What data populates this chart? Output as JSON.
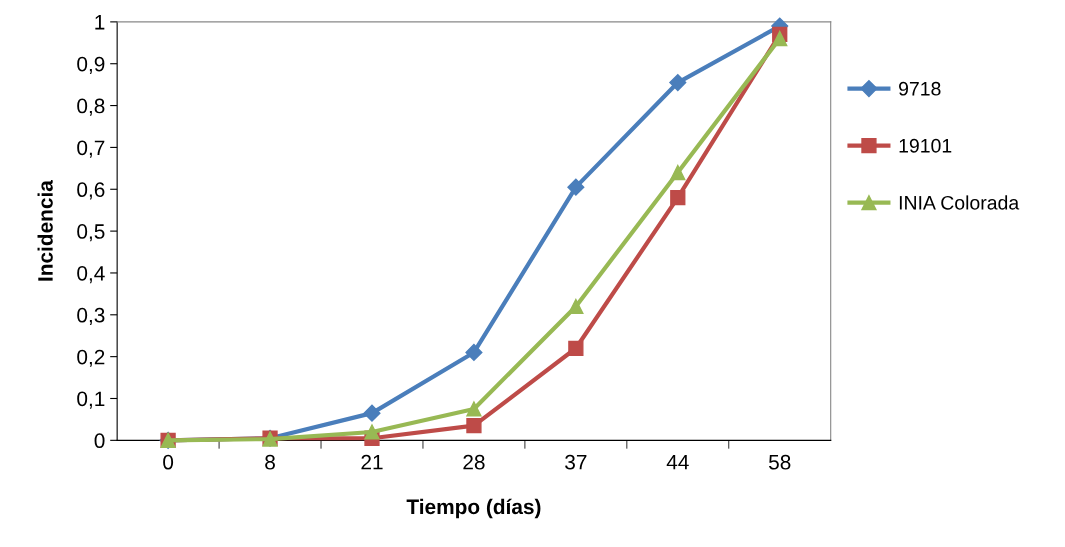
{
  "chart_data": {
    "type": "line",
    "xlabel": "Tiempo (días)",
    "ylabel": "Incidencia",
    "categories": [
      "0",
      "8",
      "21",
      "28",
      "37",
      "44",
      "58"
    ],
    "series": [
      {
        "name": "9718",
        "color": "#4a7ebb",
        "marker": "diamond",
        "values": [
          0,
          0.005,
          0.065,
          0.21,
          0.605,
          0.855,
          0.99
        ]
      },
      {
        "name": "19101",
        "color": "#be4b48",
        "marker": "square",
        "values": [
          0,
          0.005,
          0.005,
          0.035,
          0.22,
          0.58,
          0.97
        ]
      },
      {
        "name": "INIA Colorada",
        "color": "#98b954",
        "marker": "triangle",
        "values": [
          0,
          0.003,
          0.02,
          0.075,
          0.32,
          0.64,
          0.96
        ]
      }
    ],
    "ylim": [
      0,
      1
    ],
    "yticks": [
      0,
      {
        "value": 0.1,
        "label": "0,1"
      },
      {
        "value": 0.2,
        "label": "0,2"
      },
      {
        "value": 0.3,
        "label": "0,3"
      },
      {
        "value": 0.4,
        "label": "0,4"
      },
      {
        "value": 0.5,
        "label": "0,5"
      },
      {
        "value": 0.6,
        "label": "0,6"
      },
      {
        "value": 0.7,
        "label": "0,7"
      },
      {
        "value": 0.8,
        "label": "0,8"
      },
      {
        "value": 0.9,
        "label": "0,9"
      },
      1
    ],
    "grid": false,
    "legend": "right",
    "line_style": "solid"
  }
}
